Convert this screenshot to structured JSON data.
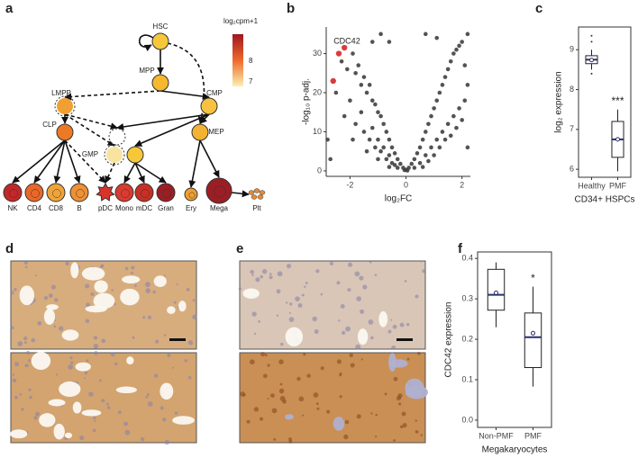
{
  "panel_labels": [
    "a",
    "b",
    "c",
    "d",
    "e",
    "f"
  ],
  "diagram": {
    "legend_title": "log₂cpm+1",
    "legend_ticks": [
      "8",
      "7"
    ],
    "nodes": [
      {
        "label": "HSC",
        "color": "#f7c73a"
      },
      {
        "label": "MPP",
        "color": "#f5b82e"
      },
      {
        "label": "LMPP",
        "color": "#f0a030"
      },
      {
        "label": "CMP",
        "color": "#f6c240"
      },
      {
        "label": "CLP",
        "color": "#ec7a25"
      },
      {
        "label": "GMP",
        "color": "#f8e3a0"
      },
      {
        "label": "MEP",
        "color": "#f2b233"
      },
      {
        "label": "NK",
        "color": "#c0282a"
      },
      {
        "label": "CD4",
        "color": "#e8682a"
      },
      {
        "label": "CD8",
        "color": "#f0a438"
      },
      {
        "label": "B",
        "color": "#ef9033"
      },
      {
        "label": "pDC",
        "color": "#d8352a"
      },
      {
        "label": "Mono",
        "color": "#d83c30"
      },
      {
        "label": "mDC",
        "color": "#c73025"
      },
      {
        "label": "Gran",
        "color": "#9c1e24"
      },
      {
        "label": "Ery",
        "color": "#f0a030"
      },
      {
        "label": "Mega",
        "color": "#9c1e24"
      },
      {
        "label": "Plt",
        "color": "#e88a35"
      }
    ]
  },
  "chart_data": [
    {
      "type": "scatter",
      "xlabel": "log₂FC",
      "ylabel": "-log₁₀ p-adj.",
      "annotation": "CDC42",
      "xlim": [
        -2.85,
        2.3
      ],
      "ylim": [
        -1.4,
        36.8
      ],
      "xticks": [
        -2,
        0,
        2
      ],
      "yticks": [
        0,
        10,
        20,
        30
      ],
      "series": [
        {
          "color": "#404040",
          "x": [
            -2.3,
            -2.1,
            -1.9,
            -1.8,
            -1.7,
            -1.6,
            -1.5,
            -1.4,
            -1.3,
            -1.2,
            -1.1,
            -1.0,
            -0.9,
            -0.8,
            -0.7,
            -0.6,
            -0.5,
            -0.4,
            -0.3,
            -0.2,
            -0.1,
            -1.8,
            -1.5,
            -1.3,
            -1.1,
            -0.9,
            -0.7,
            -0.5,
            -0.3,
            -2.0,
            -1.6,
            -1.2,
            -1.0,
            -0.8,
            -0.6,
            -0.4,
            -2.2,
            -1.9,
            -1.4,
            -1.0,
            -0.6,
            -2.8,
            -2.7,
            -2.5,
            -1.2,
            -0.9,
            -0.6,
            0.1,
            0.2,
            0.3,
            0.4,
            0.5,
            0.6,
            0.7,
            0.8,
            0.9,
            1.0,
            1.1,
            1.2,
            1.3,
            1.4,
            1.5,
            1.6,
            1.7,
            1.8,
            1.9,
            2.0,
            0.3,
            0.5,
            0.7,
            0.9,
            1.1,
            1.3,
            1.5,
            1.7,
            1.9,
            2.1,
            0.6,
            0.8,
            1.0,
            1.2,
            1.4,
            1.6,
            1.8,
            2.0,
            2.2,
            2.1,
            2.2,
            2.2,
            1.1,
            0.7,
            0.0,
            0.05,
            -0.05
          ],
          "values": [
            28,
            26,
            30,
            25,
            27,
            22,
            24,
            20,
            22,
            18,
            17,
            15,
            14,
            12,
            10,
            8,
            6,
            4.5,
            3,
            1.8,
            0.8,
            12,
            10,
            8,
            6,
            5,
            3,
            2,
            0.8,
            18,
            15,
            11,
            8,
            6,
            4,
            1.5,
            14,
            8,
            5,
            3,
            1,
            8,
            3,
            20,
            33,
            35,
            33,
            0.8,
            1.8,
            3,
            4.5,
            6,
            8,
            10,
            12,
            14,
            16,
            18,
            20,
            22,
            24,
            26,
            28,
            30,
            31,
            32,
            33,
            0.8,
            2,
            4,
            6,
            8,
            10,
            12,
            14,
            16,
            18,
            1,
            2.5,
            4,
            6,
            8,
            9,
            11,
            13,
            22,
            27,
            35,
            6,
            34,
            35,
            0.3,
            0.1,
            0.2
          ]
        },
        {
          "color": "#d62728",
          "x": [
            -2.2,
            -2.4,
            -2.6
          ],
          "values": [
            31.5,
            30,
            23
          ]
        }
      ]
    },
    {
      "type": "box",
      "xlabel": "CD34+ HSPCs",
      "ylabel": "log₂ expression",
      "annotation": "***",
      "categories": [
        "Healthy",
        "PMF"
      ],
      "ylim": [
        5.8,
        9.57
      ],
      "yticks": [
        6,
        7,
        8,
        9
      ],
      "boxes": [
        {
          "min": 8.5,
          "q1": 8.65,
          "median": 8.75,
          "q3": 8.85,
          "max": 9.0,
          "mean": 8.74,
          "outliers": [
            9.35,
            9.2,
            8.4
          ]
        },
        {
          "min": 5.95,
          "q1": 6.3,
          "median": 6.75,
          "q3": 7.2,
          "max": 7.5,
          "mean": 6.75,
          "outliers": []
        }
      ]
    },
    {
      "type": "box",
      "xlabel": "Megakaryocytes",
      "ylabel": "CDC42 expression",
      "annotation": "*",
      "categories": [
        "Non-PMF",
        "PMF"
      ],
      "ylim": [
        -0.018,
        0.416
      ],
      "yticks": [
        {
          "value": 0,
          "label": "0.0"
        },
        0.1,
        0.2,
        0.3,
        0.4
      ],
      "boxes": [
        {
          "min": 0.23,
          "q1": 0.272,
          "median": 0.31,
          "q3": 0.373,
          "max": 0.39,
          "mean": 0.315,
          "outliers": []
        },
        {
          "min": 0.083,
          "q1": 0.13,
          "median": 0.205,
          "q3": 0.265,
          "max": 0.33,
          "mean": 0.215,
          "outliers": []
        }
      ]
    }
  ]
}
